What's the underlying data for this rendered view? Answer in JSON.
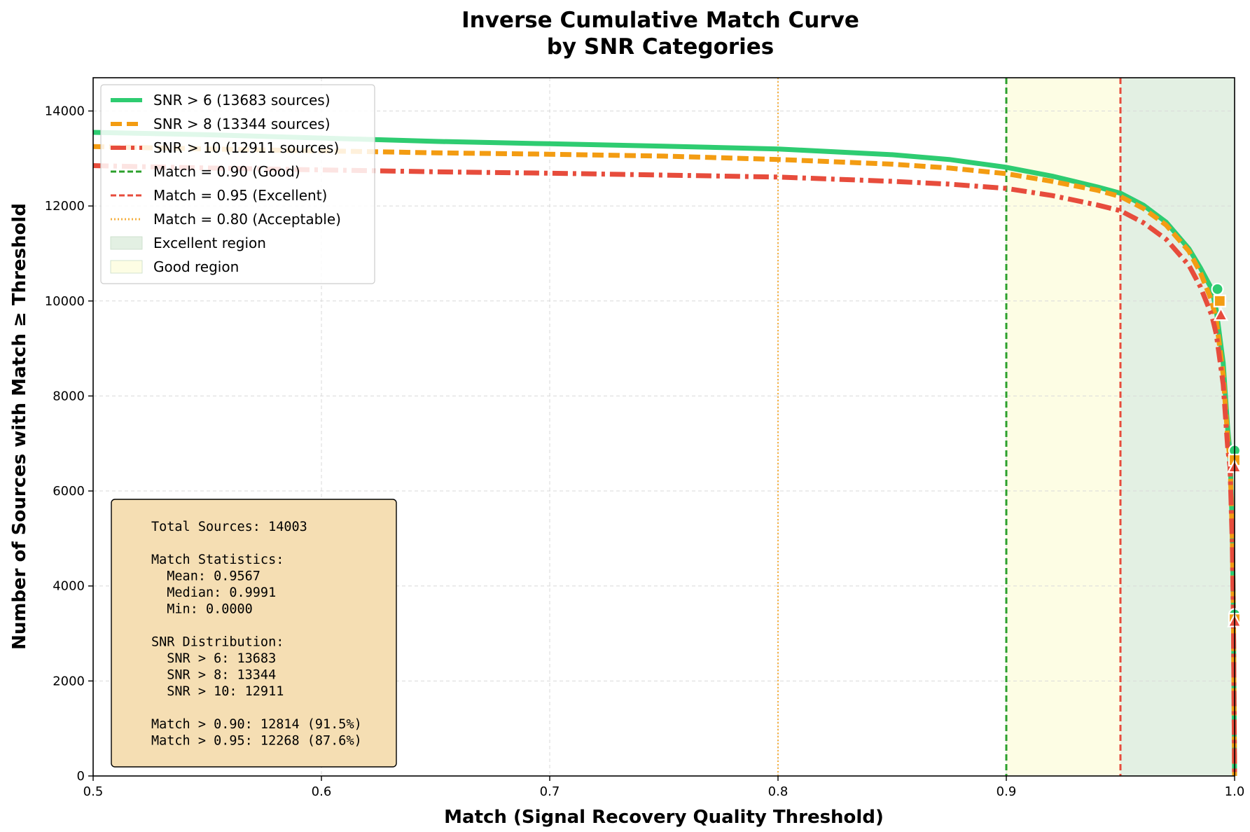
{
  "chart_data": {
    "type": "line",
    "title_lines": [
      "Inverse Cumulative Match Curve",
      "by SNR Categories"
    ],
    "xlabel": "Match (Signal Recovery Quality Threshold)",
    "ylabel": "Number of Sources with Match ≥ Threshold",
    "xlim": [
      0.5,
      1.0
    ],
    "ylim": [
      0,
      14700
    ],
    "xticks": [
      0.5,
      0.6,
      0.7,
      0.8,
      0.9,
      1.0
    ],
    "xtick_labels": [
      "0.5",
      "0.6",
      "0.7",
      "0.8",
      "0.9",
      "1.0"
    ],
    "yticks": [
      0,
      2000,
      4000,
      6000,
      8000,
      10000,
      12000,
      14000
    ],
    "ytick_labels": [
      "0",
      "2000",
      "4000",
      "6000",
      "8000",
      "10000",
      "12000",
      "14000"
    ],
    "grid": true,
    "legend_position": "upper-left",
    "series": [
      {
        "name": "SNR > 6 (13683 sources)",
        "color": "#2ecc71",
        "style": "solid",
        "marker": "circle",
        "x": [
          0.5,
          0.55,
          0.6,
          0.65,
          0.7,
          0.75,
          0.8,
          0.85,
          0.875,
          0.9,
          0.92,
          0.94,
          0.95,
          0.96,
          0.97,
          0.98,
          0.985,
          0.99,
          0.992,
          0.995,
          0.997,
          0.998,
          0.999,
          0.9995,
          0.9998,
          1.0
        ],
        "values": [
          13550,
          13500,
          13430,
          13360,
          13310,
          13260,
          13200,
          13080,
          12980,
          12814,
          12630,
          12400,
          12268,
          12020,
          11660,
          11100,
          10700,
          10250,
          9800,
          8700,
          7300,
          6800,
          5200,
          3400,
          1500,
          0
        ]
      },
      {
        "name": "SNR > 8 (13344 sources)",
        "color": "#f39c12",
        "style": "dashed",
        "marker": "square",
        "x": [
          0.5,
          0.55,
          0.6,
          0.65,
          0.7,
          0.75,
          0.8,
          0.85,
          0.875,
          0.9,
          0.92,
          0.94,
          0.95,
          0.96,
          0.97,
          0.98,
          0.985,
          0.99,
          0.992,
          0.995,
          0.997,
          0.998,
          0.999,
          0.9995,
          0.9998,
          1.0
        ],
        "values": [
          13250,
          13200,
          13160,
          13120,
          13090,
          13050,
          12980,
          12880,
          12800,
          12680,
          12520,
          12330,
          12200,
          11950,
          11600,
          11050,
          10600,
          10000,
          9600,
          8450,
          7100,
          6650,
          5050,
          3300,
          1450,
          0
        ]
      },
      {
        "name": "SNR > 10 (12911 sources)",
        "color": "#e74c3c",
        "style": "dashdot",
        "marker": "triangle",
        "x": [
          0.5,
          0.55,
          0.6,
          0.65,
          0.7,
          0.75,
          0.8,
          0.85,
          0.875,
          0.9,
          0.92,
          0.94,
          0.95,
          0.96,
          0.97,
          0.98,
          0.985,
          0.99,
          0.992,
          0.995,
          0.997,
          0.998,
          0.999,
          0.9995,
          0.9998,
          1.0
        ],
        "values": [
          12850,
          12800,
          12760,
          12720,
          12690,
          12650,
          12610,
          12520,
          12460,
          12370,
          12220,
          12020,
          11900,
          11650,
          11300,
          10750,
          10300,
          9700,
          9300,
          8250,
          6900,
          6500,
          4900,
          3200,
          1400,
          0
        ]
      }
    ],
    "marker_points": [
      {
        "series": 0,
        "x": 0.9925,
        "y": 10250
      },
      {
        "series": 1,
        "x": 0.9935,
        "y": 10000
      },
      {
        "series": 2,
        "x": 0.994,
        "y": 9700
      },
      {
        "series": 0,
        "x": 1.0,
        "y": 6850
      },
      {
        "series": 1,
        "x": 1.0,
        "y": 6650
      },
      {
        "series": 2,
        "x": 1.0,
        "y": 6500
      },
      {
        "series": 0,
        "x": 1.0,
        "y": 3400
      },
      {
        "series": 1,
        "x": 1.0,
        "y": 3300
      },
      {
        "series": 2,
        "x": 1.0,
        "y": 3250
      }
    ],
    "reference_lines": [
      {
        "name": "Match = 0.90 (Good)",
        "x": 0.9,
        "color": "#2ca02c",
        "style": "dashed"
      },
      {
        "name": "Match = 0.95 (Excellent)",
        "x": 0.95,
        "color": "#e74c3c",
        "style": "dashed"
      },
      {
        "name": "Match = 0.80 (Acceptable)",
        "x": 0.8,
        "color": "#f5b041",
        "style": "dotted"
      }
    ],
    "regions": [
      {
        "name": "Excellent region",
        "x_start": 0.95,
        "x_end": 1.0,
        "color": "#e3f0e3"
      },
      {
        "name": "Good region",
        "x_start": 0.9,
        "x_end": 0.95,
        "color": "#fdfde4"
      }
    ],
    "stats_box_lines": [
      "Total Sources: 14003",
      "",
      "Match Statistics:",
      "  Mean: 0.9567",
      "  Median: 0.9991",
      "  Min: 0.0000",
      "",
      "SNR Distribution:",
      "  SNR > 6: 13683",
      "  SNR > 8: 13344",
      "  SNR > 10: 12911",
      "",
      "Match > 0.90: 12814 (91.5%)",
      "Match > 0.95: 12268 (87.6%)"
    ]
  }
}
